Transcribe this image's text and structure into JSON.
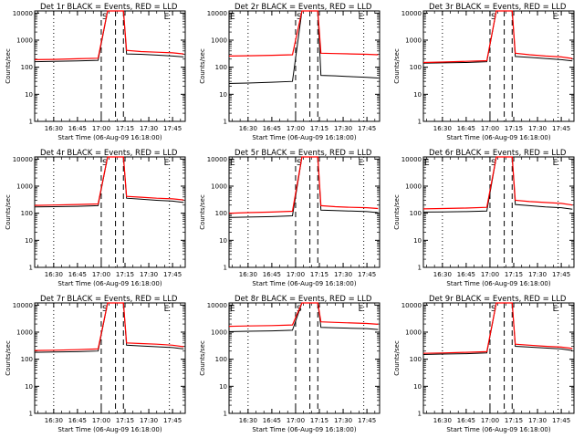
{
  "chart_data": [
    {
      "type": "line",
      "title": "Det 1r BLACK = Events, RED = LLD",
      "xlabel": "Start Time (06-Aug-09 16:18:00)",
      "ylabel": "Counts/sec",
      "y_scale": "log",
      "ylim": [
        1,
        12000
      ],
      "x_tick_labels": [
        "16:30",
        "16:45",
        "17:00",
        "17:15",
        "17:30",
        "17:45"
      ],
      "y_tick_labels": [
        "1",
        "10",
        "100",
        "1000",
        "10000"
      ],
      "interval_markers": [
        "S",
        "E"
      ],
      "series": [
        {
          "color": "#000000",
          "x": [
            "16:18",
            "16:30",
            "16:45",
            "16:58",
            "17:04",
            "17:09",
            "17:14",
            "17:16",
            "17:25",
            "17:35",
            "17:45",
            "17:52"
          ],
          "values": [
            160,
            165,
            170,
            180,
            12000,
            12000,
            12000,
            310,
            300,
            280,
            260,
            240
          ]
        },
        {
          "color": "#ff0000",
          "x": [
            "16:18",
            "16:30",
            "16:45",
            "16:58",
            "17:04",
            "17:09",
            "17:14",
            "17:16",
            "17:25",
            "17:35",
            "17:45",
            "17:52"
          ],
          "values": [
            190,
            195,
            205,
            215,
            12000,
            12000,
            12000,
            420,
            380,
            360,
            340,
            310
          ]
        }
      ]
    },
    {
      "type": "line",
      "title": "Det 2r BLACK = Events, RED = LLD",
      "xlabel": "Start Time (06-Aug-09 16:18:00)",
      "ylabel": "Counts/sec",
      "y_scale": "log",
      "ylim": [
        1,
        12000
      ],
      "x_tick_labels": [
        "16:30",
        "16:45",
        "17:00",
        "17:15",
        "17:30",
        "17:45"
      ],
      "y_tick_labels": [
        "1",
        "10",
        "100",
        "1000",
        "10000"
      ],
      "interval_markers": [
        "E",
        "S",
        "E"
      ],
      "series": [
        {
          "color": "#000000",
          "x": [
            "16:18",
            "16:30",
            "16:45",
            "16:58",
            "17:04",
            "17:09",
            "17:14",
            "17:16",
            "17:25",
            "17:35",
            "17:45",
            "17:52"
          ],
          "values": [
            25,
            26,
            28,
            30,
            12000,
            12000,
            12000,
            50,
            48,
            45,
            42,
            40
          ]
        },
        {
          "color": "#ff0000",
          "x": [
            "16:18",
            "16:30",
            "16:45",
            "16:58",
            "17:04",
            "17:09",
            "17:14",
            "17:16",
            "17:25",
            "17:35",
            "17:45",
            "17:52"
          ],
          "values": [
            260,
            265,
            275,
            290,
            12000,
            12000,
            12000,
            330,
            320,
            310,
            300,
            290
          ]
        }
      ]
    },
    {
      "type": "line",
      "title": "Det 3r BLACK = Events, RED = LLD",
      "xlabel": "Start Time (06-Aug-09 16:18:00)",
      "ylabel": "Counts/sec",
      "y_scale": "log",
      "ylim": [
        1,
        12000
      ],
      "x_tick_labels": [
        "16:30",
        "16:45",
        "17:00",
        "17:15",
        "17:30",
        "17:45"
      ],
      "y_tick_labels": [
        "1",
        "10",
        "100",
        "1000",
        "10000"
      ],
      "interval_markers": [
        "S",
        "E"
      ],
      "series": [
        {
          "color": "#000000",
          "x": [
            "16:18",
            "16:30",
            "16:45",
            "16:58",
            "17:04",
            "17:09",
            "17:14",
            "17:16",
            "17:25",
            "17:35",
            "17:45",
            "17:52"
          ],
          "values": [
            140,
            145,
            150,
            160,
            12000,
            12000,
            12000,
            250,
            230,
            210,
            190,
            170
          ]
        },
        {
          "color": "#ff0000",
          "x": [
            "16:18",
            "16:30",
            "16:45",
            "16:58",
            "17:04",
            "17:09",
            "17:14",
            "17:16",
            "17:25",
            "17:35",
            "17:45",
            "17:52"
          ],
          "values": [
            150,
            155,
            165,
            175,
            12000,
            12000,
            12000,
            330,
            290,
            260,
            240,
            210
          ]
        }
      ]
    },
    {
      "type": "line",
      "title": "Det 4r BLACK = Events, RED = LLD",
      "xlabel": "Start Time (06-Aug-09 16:18:00)",
      "ylabel": "Counts/sec",
      "y_scale": "log",
      "ylim": [
        1,
        12000
      ],
      "x_tick_labels": [
        "16:30",
        "16:45",
        "17:00",
        "17:15",
        "17:30",
        "17:45"
      ],
      "y_tick_labels": [
        "1",
        "10",
        "100",
        "1000",
        "10000"
      ],
      "interval_markers": [
        "S",
        "E"
      ],
      "series": [
        {
          "color": "#000000",
          "x": [
            "16:18",
            "16:30",
            "16:45",
            "16:58",
            "17:04",
            "17:09",
            "17:14",
            "17:16",
            "17:25",
            "17:35",
            "17:45",
            "17:52"
          ],
          "values": [
            170,
            175,
            180,
            190,
            12000,
            12000,
            12000,
            360,
            330,
            300,
            280,
            250
          ]
        },
        {
          "color": "#ff0000",
          "x": [
            "16:18",
            "16:30",
            "16:45",
            "16:58",
            "17:04",
            "17:09",
            "17:14",
            "17:16",
            "17:25",
            "17:35",
            "17:45",
            "17:52"
          ],
          "values": [
            195,
            200,
            210,
            220,
            12000,
            12000,
            12000,
            420,
            390,
            360,
            340,
            310
          ]
        }
      ]
    },
    {
      "type": "line",
      "title": "Det 5r BLACK = Events, RED = LLD",
      "xlabel": "Start Time (06-Aug-09 16:18:00)",
      "ylabel": "Counts/sec",
      "y_scale": "log",
      "ylim": [
        1,
        12000
      ],
      "x_tick_labels": [
        "16:30",
        "16:45",
        "17:00",
        "17:15",
        "17:30",
        "17:45"
      ],
      "y_tick_labels": [
        "1",
        "10",
        "100",
        "1000",
        "10000"
      ],
      "interval_markers": [
        "E",
        "S",
        "E"
      ],
      "series": [
        {
          "color": "#000000",
          "x": [
            "16:18",
            "16:30",
            "16:45",
            "16:58",
            "17:04",
            "17:09",
            "17:14",
            "17:16",
            "17:25",
            "17:35",
            "17:45",
            "17:52"
          ],
          "values": [
            70,
            72,
            75,
            80,
            12000,
            12000,
            12000,
            130,
            125,
            120,
            115,
            105
          ]
        },
        {
          "color": "#ff0000",
          "x": [
            "16:18",
            "16:30",
            "16:45",
            "16:58",
            "17:04",
            "17:09",
            "17:14",
            "17:16",
            "17:25",
            "17:35",
            "17:45",
            "17:52"
          ],
          "values": [
            100,
            105,
            110,
            118,
            12000,
            12000,
            12000,
            190,
            175,
            165,
            160,
            150
          ]
        }
      ]
    },
    {
      "type": "line",
      "title": "Det 6r BLACK = Events, RED = LLD",
      "xlabel": "Start Time (06-Aug-09 16:18:00)",
      "ylabel": "Counts/sec",
      "y_scale": "log",
      "ylim": [
        1,
        12000
      ],
      "x_tick_labels": [
        "16:30",
        "16:45",
        "17:00",
        "17:15",
        "17:30",
        "17:45"
      ],
      "y_tick_labels": [
        "1",
        "10",
        "100",
        "1000",
        "10000"
      ],
      "interval_markers": [
        "E",
        "S",
        "E"
      ],
      "series": [
        {
          "color": "#000000",
          "x": [
            "16:18",
            "16:30",
            "16:45",
            "16:58",
            "17:04",
            "17:09",
            "17:14",
            "17:16",
            "17:25",
            "17:35",
            "17:45",
            "17:52"
          ],
          "values": [
            110,
            112,
            115,
            120,
            12000,
            12000,
            12000,
            210,
            190,
            170,
            160,
            140
          ]
        },
        {
          "color": "#ff0000",
          "x": [
            "16:18",
            "16:30",
            "16:45",
            "16:58",
            "17:04",
            "17:09",
            "17:14",
            "17:16",
            "17:25",
            "17:35",
            "17:45",
            "17:52"
          ],
          "values": [
            145,
            150,
            155,
            165,
            12000,
            12000,
            12000,
            300,
            270,
            250,
            230,
            200
          ]
        }
      ]
    },
    {
      "type": "line",
      "title": "Det 7r BLACK = Events, RED = LLD",
      "xlabel": "Start Time (06-Aug-09 16:18:00)",
      "ylabel": "Counts/sec",
      "y_scale": "log",
      "ylim": [
        1,
        12000
      ],
      "x_tick_labels": [
        "16:30",
        "16:45",
        "17:00",
        "17:15",
        "17:30",
        "17:45"
      ],
      "y_tick_labels": [
        "1",
        "10",
        "100",
        "1000",
        "10000"
      ],
      "interval_markers": [
        "S",
        "E"
      ],
      "series": [
        {
          "color": "#000000",
          "x": [
            "16:18",
            "16:30",
            "16:45",
            "16:58",
            "17:04",
            "17:09",
            "17:14",
            "17:16",
            "17:25",
            "17:35",
            "17:45",
            "17:52"
          ],
          "values": [
            180,
            185,
            190,
            200,
            12000,
            12000,
            12000,
            330,
            310,
            290,
            270,
            240
          ]
        },
        {
          "color": "#ff0000",
          "x": [
            "16:18",
            "16:30",
            "16:45",
            "16:58",
            "17:04",
            "17:09",
            "17:14",
            "17:16",
            "17:25",
            "17:35",
            "17:45",
            "17:52"
          ],
          "values": [
            210,
            215,
            225,
            240,
            12000,
            12000,
            12000,
            400,
            380,
            360,
            330,
            290
          ]
        }
      ]
    },
    {
      "type": "line",
      "title": "Det 8r BLACK = Events, RED = LLD",
      "xlabel": "Start Time (06-Aug-09 16:18:00)",
      "ylabel": "Counts/sec",
      "y_scale": "log",
      "ylim": [
        1,
        12000
      ],
      "x_tick_labels": [
        "16:30",
        "16:45",
        "17:00",
        "17:15",
        "17:30",
        "17:45"
      ],
      "y_tick_labels": [
        "1",
        "10",
        "100",
        "1000",
        "10000"
      ],
      "interval_markers": [
        "E",
        "S",
        "E"
      ],
      "series": [
        {
          "color": "#000000",
          "x": [
            "16:18",
            "16:30",
            "16:45",
            "16:58",
            "17:04",
            "17:09",
            "17:14",
            "17:16",
            "17:25",
            "17:35",
            "17:45",
            "17:52"
          ],
          "values": [
            1050,
            1080,
            1120,
            1180,
            12000,
            12000,
            12000,
            1500,
            1450,
            1400,
            1350,
            1250
          ]
        },
        {
          "color": "#ff0000",
          "x": [
            "16:18",
            "16:30",
            "16:45",
            "16:58",
            "17:04",
            "17:09",
            "17:14",
            "17:16",
            "17:25",
            "17:35",
            "17:45",
            "17:52"
          ],
          "values": [
            1650,
            1700,
            1750,
            1850,
            12000,
            12000,
            12000,
            2400,
            2300,
            2200,
            2100,
            1950
          ]
        }
      ]
    },
    {
      "type": "line",
      "title": "Det 9r BLACK = Events, RED = LLD",
      "xlabel": "Start Time (06-Aug-09 16:18:00)",
      "ylabel": "Counts/sec",
      "y_scale": "log",
      "ylim": [
        1,
        12000
      ],
      "x_tick_labels": [
        "16:30",
        "16:45",
        "17:00",
        "17:15",
        "17:30",
        "17:45"
      ],
      "y_tick_labels": [
        "1",
        "10",
        "100",
        "1000",
        "10000"
      ],
      "interval_markers": [
        "S",
        "E"
      ],
      "series": [
        {
          "color": "#000000",
          "x": [
            "16:18",
            "16:30",
            "16:45",
            "16:58",
            "17:04",
            "17:09",
            "17:14",
            "17:16",
            "17:25",
            "17:35",
            "17:45",
            "17:52"
          ],
          "values": [
            150,
            155,
            160,
            170,
            12000,
            12000,
            12000,
            300,
            280,
            260,
            240,
            210
          ]
        },
        {
          "color": "#ff0000",
          "x": [
            "16:18",
            "16:30",
            "16:45",
            "16:58",
            "17:04",
            "17:09",
            "17:14",
            "17:16",
            "17:25",
            "17:35",
            "17:45",
            "17:52"
          ],
          "values": [
            165,
            170,
            180,
            190,
            12000,
            12000,
            12000,
            360,
            330,
            300,
            280,
            250
          ]
        }
      ]
    }
  ]
}
